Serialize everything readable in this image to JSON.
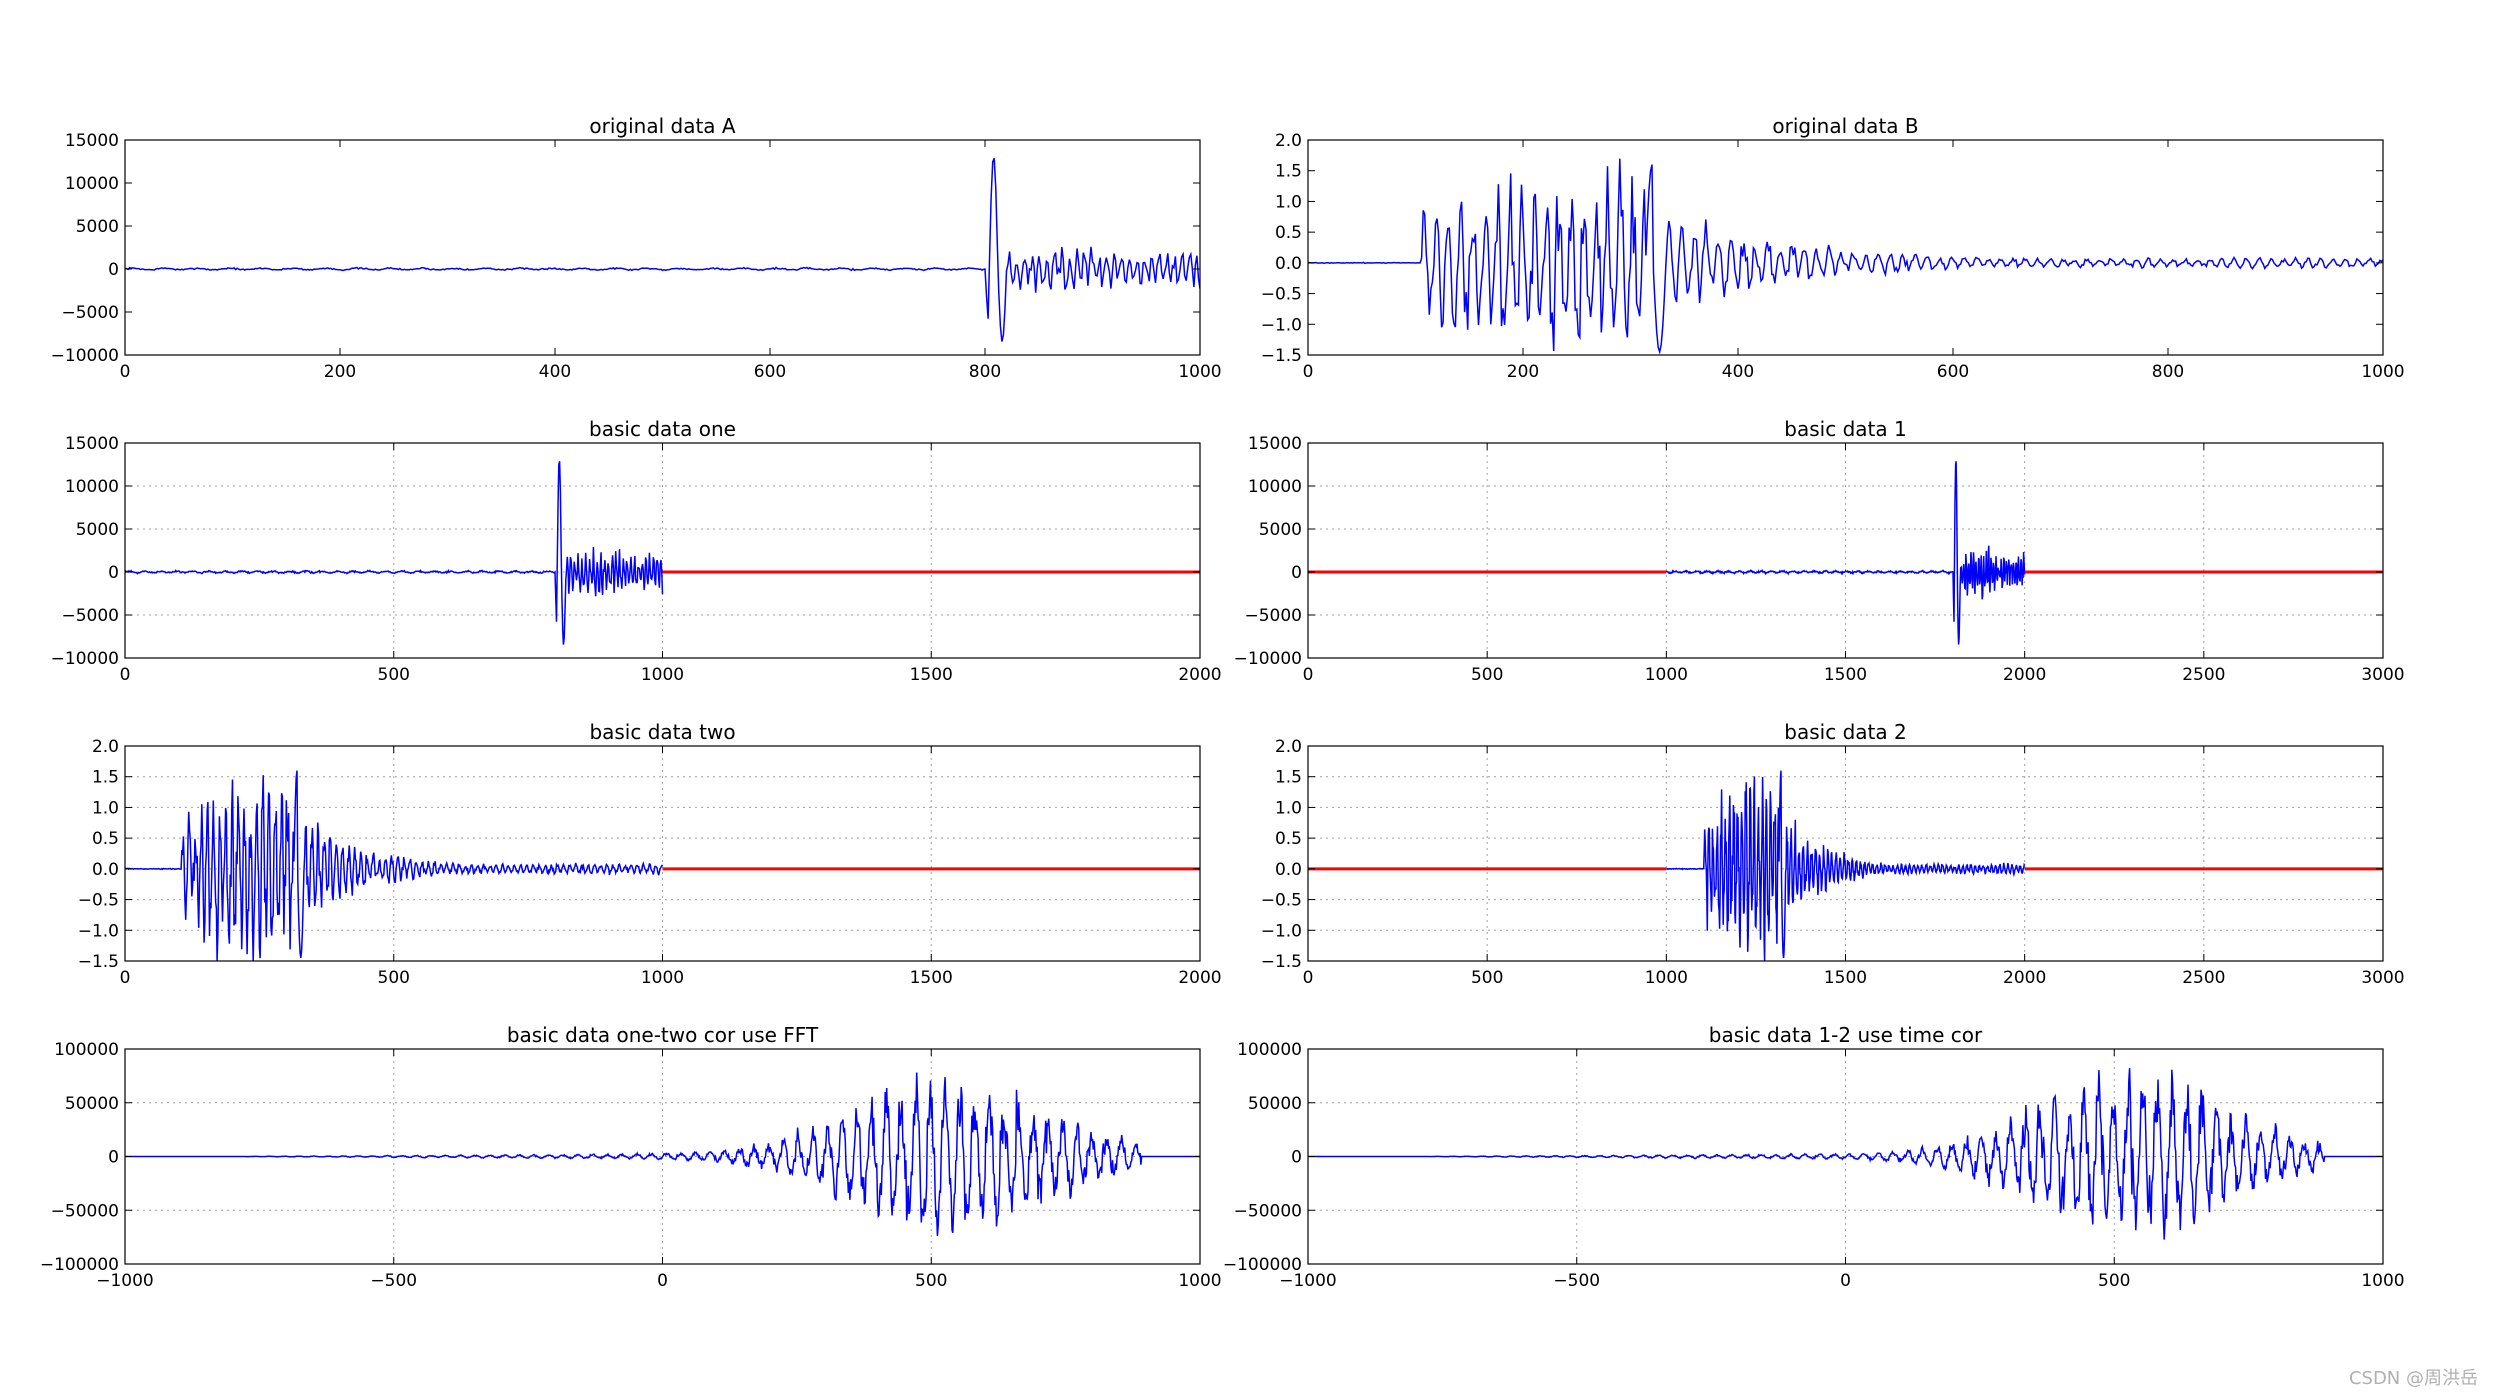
{
  "watermark": "CSDN @周洪岳",
  "colors": {
    "signal": "#0000ff",
    "padding": "#ff0000",
    "grid": "#a0a0a0",
    "axes": "#000000"
  },
  "chart_data": [
    {
      "type": "line",
      "title": "original data A",
      "xlim": [
        0,
        1000
      ],
      "ylim": [
        -10000,
        15000
      ],
      "xticks": [
        0,
        200,
        400,
        600,
        800,
        1000
      ],
      "yticks": [
        -10000,
        -5000,
        0,
        5000,
        10000,
        15000
      ],
      "xtick_labels": [
        "0",
        "200",
        "400",
        "600",
        "800",
        "1000"
      ],
      "ytick_labels": [
        "−10000",
        "−5000",
        "0",
        "5000",
        "10000",
        "15000"
      ],
      "grid": false,
      "series": [
        {
          "color": "#0000ff",
          "kind": "noise_then_burst",
          "x_start": 0,
          "x_end": 1000,
          "noise_amp": 150,
          "event_x": 800,
          "event_peak": 13200,
          "event_trough": -8500,
          "coda_amp": 2500
        }
      ]
    },
    {
      "type": "line",
      "title": "original data B",
      "xlim": [
        0,
        1000
      ],
      "ylim": [
        -1.5,
        2.0
      ],
      "xticks": [
        0,
        200,
        400,
        600,
        800,
        1000
      ],
      "yticks": [
        -1.5,
        -1.0,
        -0.5,
        0.0,
        0.5,
        1.0,
        1.5,
        2.0
      ],
      "xtick_labels": [
        "0",
        "200",
        "400",
        "600",
        "800",
        "1000"
      ],
      "ytick_labels": [
        "−1.5",
        "−1.0",
        "−0.5",
        "0.0",
        "0.5",
        "1.0",
        "1.5",
        "2.0"
      ],
      "grid": false,
      "series": [
        {
          "color": "#0000ff",
          "kind": "decaying_burst",
          "x_start": 0,
          "x_end": 1000,
          "onset_x": 105,
          "peak": 1.6,
          "trough": -1.45,
          "tail_amp": 0.08
        }
      ]
    },
    {
      "type": "line",
      "title": "basic data one",
      "xlim": [
        0,
        2000
      ],
      "ylim": [
        -10000,
        15000
      ],
      "xticks": [
        0,
        500,
        1000,
        1500,
        2000
      ],
      "yticks": [
        -10000,
        -5000,
        0,
        5000,
        10000,
        15000
      ],
      "xtick_labels": [
        "0",
        "500",
        "1000",
        "1500",
        "2000"
      ],
      "ytick_labels": [
        "−10000",
        "−5000",
        "0",
        "5000",
        "10000",
        "15000"
      ],
      "grid": true,
      "series": [
        {
          "color": "#0000ff",
          "kind": "noise_then_burst",
          "x_start": 0,
          "x_end": 1000,
          "noise_amp": 150,
          "event_x": 800,
          "event_peak": 13200,
          "event_trough": -8500,
          "coda_amp": 2500
        },
        {
          "color": "#ff0000",
          "kind": "zeros",
          "x_start": 1000,
          "x_end": 2000
        }
      ]
    },
    {
      "type": "line",
      "title": "basic data 1",
      "xlim": [
        0,
        3000
      ],
      "ylim": [
        -10000,
        15000
      ],
      "xticks": [
        0,
        500,
        1000,
        1500,
        2000,
        2500,
        3000
      ],
      "yticks": [
        -10000,
        -5000,
        0,
        5000,
        10000,
        15000
      ],
      "xtick_labels": [
        "0",
        "500",
        "1000",
        "1500",
        "2000",
        "2500",
        "3000"
      ],
      "ytick_labels": [
        "−10000",
        "−5000",
        "0",
        "5000",
        "10000",
        "15000"
      ],
      "grid": true,
      "series": [
        {
          "color": "#ff0000",
          "kind": "zeros",
          "x_start": 0,
          "x_end": 1000
        },
        {
          "color": "#0000ff",
          "kind": "noise_then_burst",
          "x_start": 1000,
          "x_end": 2000,
          "noise_amp": 150,
          "event_x": 1800,
          "event_peak": 13200,
          "event_trough": -8500,
          "coda_amp": 2500
        },
        {
          "color": "#ff0000",
          "kind": "zeros",
          "x_start": 2000,
          "x_end": 3000
        }
      ]
    },
    {
      "type": "line",
      "title": "basic data two",
      "xlim": [
        0,
        2000
      ],
      "ylim": [
        -1.5,
        2.0
      ],
      "xticks": [
        0,
        500,
        1000,
        1500,
        2000
      ],
      "yticks": [
        -1.5,
        -1.0,
        -0.5,
        0.0,
        0.5,
        1.0,
        1.5,
        2.0
      ],
      "xtick_labels": [
        "0",
        "500",
        "1000",
        "1500",
        "2000"
      ],
      "ytick_labels": [
        "−1.5",
        "−1.0",
        "−0.5",
        "0.0",
        "0.5",
        "1.0",
        "1.5",
        "2.0"
      ],
      "grid": true,
      "series": [
        {
          "color": "#0000ff",
          "kind": "decaying_burst",
          "x_start": 0,
          "x_end": 1000,
          "onset_x": 105,
          "peak": 1.6,
          "trough": -1.45,
          "tail_amp": 0.08
        },
        {
          "color": "#ff0000",
          "kind": "zeros",
          "x_start": 1000,
          "x_end": 2000
        }
      ]
    },
    {
      "type": "line",
      "title": "basic data 2",
      "xlim": [
        0,
        3000
      ],
      "ylim": [
        -1.5,
        2.0
      ],
      "xticks": [
        0,
        500,
        1000,
        1500,
        2000,
        2500,
        3000
      ],
      "yticks": [
        -1.5,
        -1.0,
        -0.5,
        0.0,
        0.5,
        1.0,
        1.5,
        2.0
      ],
      "xtick_labels": [
        "0",
        "500",
        "1000",
        "1500",
        "2000",
        "2500",
        "3000"
      ],
      "ytick_labels": [
        "−1.5",
        "−1.0",
        "−0.5",
        "0.0",
        "0.5",
        "1.0",
        "1.5",
        "2.0"
      ],
      "grid": true,
      "series": [
        {
          "color": "#ff0000",
          "kind": "zeros",
          "x_start": 0,
          "x_end": 1000
        },
        {
          "color": "#0000ff",
          "kind": "decaying_burst",
          "x_start": 1000,
          "x_end": 2000,
          "onset_x": 1105,
          "peak": 1.6,
          "trough": -1.45,
          "tail_amp": 0.08
        },
        {
          "color": "#ff0000",
          "kind": "zeros",
          "x_start": 2000,
          "x_end": 3000
        }
      ]
    },
    {
      "type": "line",
      "title": "basic data one-two cor use FFT",
      "xlim": [
        -1000,
        1000
      ],
      "ylim": [
        -100000,
        100000
      ],
      "xticks": [
        -1000,
        -500,
        0,
        500,
        1000
      ],
      "yticks": [
        -100000,
        -50000,
        0,
        50000,
        100000
      ],
      "xtick_labels": [
        "−1000",
        "−500",
        "0",
        "500",
        "1000"
      ],
      "ytick_labels": [
        "−100000",
        "−50000",
        "0",
        "50000",
        "100000"
      ],
      "grid": true,
      "series": [
        {
          "color": "#0000ff",
          "kind": "correlation",
          "x_start": -1000,
          "x_end": 1000,
          "center_x": 530,
          "peak": 98000,
          "trough": -88000,
          "support": [
            -800,
            890
          ]
        }
      ]
    },
    {
      "type": "line",
      "title": "basic data 1-2 use time cor",
      "xlim": [
        -1000,
        1000
      ],
      "ylim": [
        -100000,
        100000
      ],
      "xticks": [
        -1000,
        -500,
        0,
        500,
        1000
      ],
      "yticks": [
        -100000,
        -50000,
        0,
        50000,
        100000
      ],
      "xtick_labels": [
        "−1000",
        "−500",
        "0",
        "500",
        "1000"
      ],
      "ytick_labels": [
        "−100000",
        "−50000",
        "0",
        "50000",
        "100000"
      ],
      "grid": true,
      "series": [
        {
          "color": "#0000ff",
          "kind": "correlation",
          "x_start": -1000,
          "x_end": 1000,
          "center_x": 530,
          "peak": 98000,
          "trough": -88000,
          "support": [
            -800,
            890
          ]
        }
      ]
    }
  ]
}
